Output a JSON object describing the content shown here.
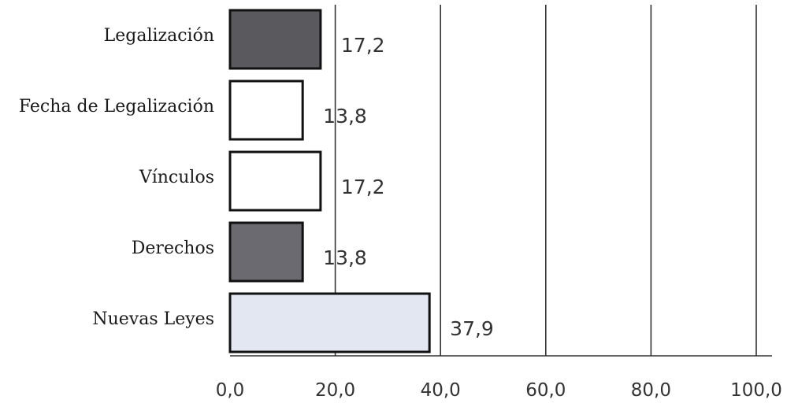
{
  "chart_data": {
    "type": "bar",
    "orientation": "horizontal",
    "title": "",
    "xlabel": "",
    "ylabel": "",
    "xlim": [
      0,
      100
    ],
    "grid": true,
    "legend": "none",
    "x_ticks": [
      "0,0",
      "20,0",
      "40,0",
      "60,0",
      "80,0",
      "100,0"
    ],
    "x_tick_values": [
      0,
      20,
      40,
      60,
      80,
      100
    ],
    "categories": [
      "Legalización",
      "Fecha de Legalización",
      "Vínculos",
      "Derechos",
      "Nuevas Leyes"
    ],
    "values": [
      17.2,
      13.8,
      17.2,
      13.8,
      37.9
    ],
    "value_labels": [
      "17,2",
      "13,8",
      "17,2",
      "13,8",
      "37,9"
    ],
    "bar_colors": [
      "#5a5a5e",
      "#ffffff",
      "#ffffff",
      "#6a6a70",
      "#e3e7f2"
    ]
  }
}
